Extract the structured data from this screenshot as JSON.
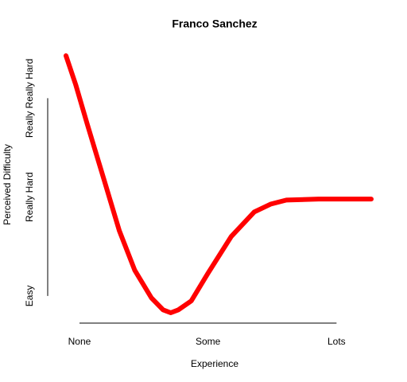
{
  "chart_data": {
    "type": "line",
    "title": "Franco Sanchez",
    "xlabel": "Experience",
    "ylabel": "Perceived Difficulty",
    "xlim": [
      -0.105,
      2.27
    ],
    "ylim": [
      -0.17,
      2.43
    ],
    "xticks": [
      {
        "value": 0,
        "label": "None"
      },
      {
        "value": 1,
        "label": "Some"
      },
      {
        "value": 2,
        "label": "Lots"
      }
    ],
    "yticks": [
      {
        "value": 0,
        "label": "Easy"
      },
      {
        "value": 1,
        "label": "Really Hard"
      },
      {
        "value": 2,
        "label": "Really Really Hard"
      }
    ],
    "series": [
      {
        "color": "#ff0000",
        "x": [
          -0.105,
          -0.03,
          0.06,
          0.19,
          0.31,
          0.43,
          0.56,
          0.65,
          0.71,
          0.77,
          0.87,
          1.0,
          1.18,
          1.36,
          1.49,
          1.61,
          1.86,
          2.27
        ],
        "values": [
          2.43,
          2.14,
          1.74,
          1.18,
          0.66,
          0.26,
          -0.02,
          -0.14,
          -0.17,
          -0.14,
          -0.05,
          0.23,
          0.6,
          0.85,
          0.93,
          0.97,
          0.98,
          0.98
        ]
      }
    ]
  }
}
